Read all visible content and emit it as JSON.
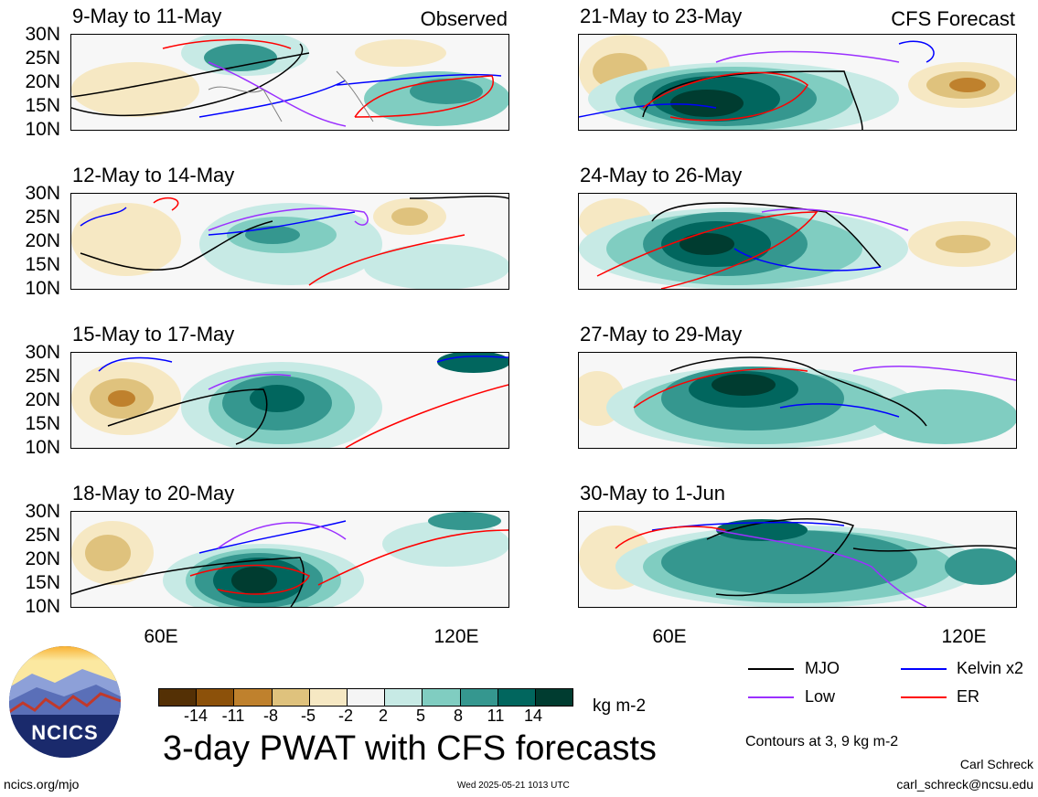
{
  "panels": [
    {
      "title": "9-May to 11-May",
      "tag": "Observed"
    },
    {
      "title": "12-May to 14-May",
      "tag": ""
    },
    {
      "title": "15-May to 17-May",
      "tag": ""
    },
    {
      "title": "18-May to 20-May",
      "tag": ""
    },
    {
      "title": "21-May to 23-May",
      "tag": "CFS Forecast"
    },
    {
      "title": "24-May to 26-May",
      "tag": ""
    },
    {
      "title": "27-May to 29-May",
      "tag": ""
    },
    {
      "title": "30-May to 1-Jun",
      "tag": ""
    }
  ],
  "lat_labels": [
    "30N",
    "25N",
    "20N",
    "15N",
    "10N"
  ],
  "lon_labels": [
    "60E",
    "120E"
  ],
  "colorbar": {
    "labels": [
      "-14",
      "-11",
      "-8",
      "-5",
      "-2",
      "2",
      "5",
      "8",
      "11",
      "14"
    ],
    "colors": [
      "#543005",
      "#8c510a",
      "#bf812d",
      "#dfc27d",
      "#f6e8c3",
      "#f5f5f5",
      "#c7eae5",
      "#80cdc1",
      "#35978f",
      "#01665e",
      "#003c30"
    ],
    "units": "kg m-2"
  },
  "legend": {
    "mjo": {
      "label": "MJO",
      "color": "#000000"
    },
    "kelvin": {
      "label": "Kelvin x2",
      "color": "#0000ff"
    },
    "low": {
      "label": "Low",
      "color": "#9b30ff"
    },
    "er": {
      "label": "ER",
      "color": "#ff0000"
    }
  },
  "contours_note": "Contours at 3, 9 kg m-2",
  "main_title": "3-day PWAT with CFS forecasts",
  "logo_text": "NCICS",
  "url": "ncics.org/mjo",
  "timestamp": "Wed 2025-05-21 1013 UTC",
  "author": "Carl Schreck",
  "email": "carl_schreck@ncsu.edu"
}
